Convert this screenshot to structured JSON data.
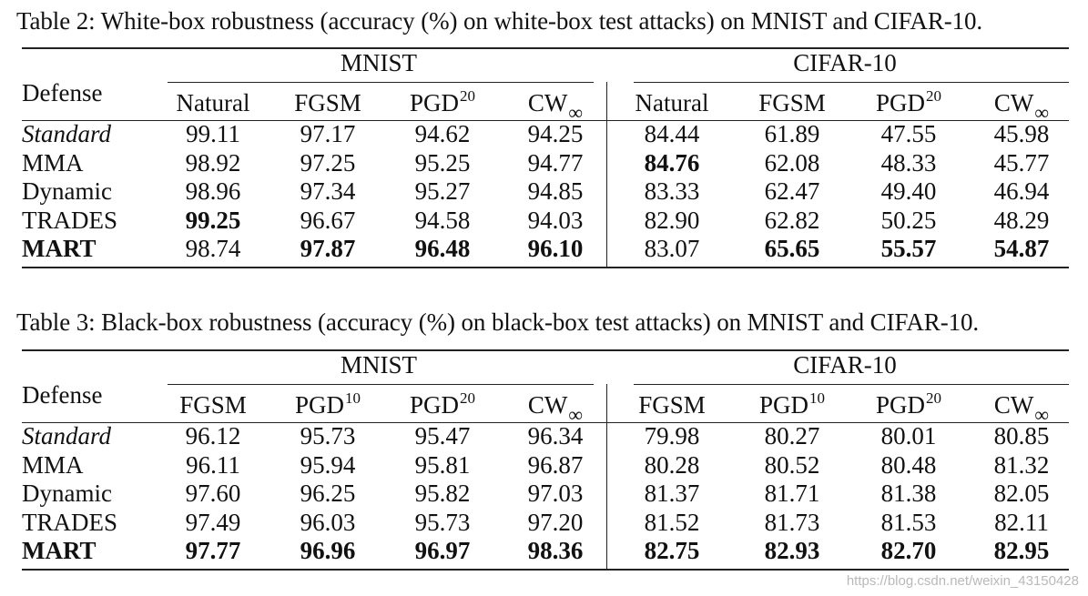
{
  "tables": [
    {
      "caption": "Table 2: White-box robustness (accuracy (%) on white-box test attacks) on MNIST and CIFAR-10.",
      "row_header": "Defense",
      "groups": [
        "MNIST",
        "CIFAR-10"
      ],
      "columns": [
        {
          "text": "Natural",
          "mod": "",
          "mtype": ""
        },
        {
          "text": "FGSM",
          "mod": "",
          "mtype": ""
        },
        {
          "text": "PGD",
          "mod": "20",
          "mtype": "sup"
        },
        {
          "text": "CW",
          "mod": "∞",
          "mtype": "sub"
        },
        {
          "text": "Natural",
          "mod": "",
          "mtype": ""
        },
        {
          "text": "FGSM",
          "mod": "",
          "mtype": ""
        },
        {
          "text": "PGD",
          "mod": "20",
          "mtype": "sup"
        },
        {
          "text": "CW",
          "mod": "∞",
          "mtype": "sub"
        }
      ],
      "rows": [
        {
          "defense": "Standard",
          "italic": true,
          "bold": false,
          "values": [
            "99.11",
            "97.17",
            "94.62",
            "94.25",
            "84.44",
            "61.89",
            "47.55",
            "45.98"
          ],
          "bold_values": [
            false,
            false,
            false,
            false,
            false,
            false,
            false,
            false
          ]
        },
        {
          "defense": "MMA",
          "italic": false,
          "bold": false,
          "values": [
            "98.92",
            "97.25",
            "95.25",
            "94.77",
            "84.76",
            "62.08",
            "48.33",
            "45.77"
          ],
          "bold_values": [
            false,
            false,
            false,
            false,
            true,
            false,
            false,
            false
          ]
        },
        {
          "defense": "Dynamic",
          "italic": false,
          "bold": false,
          "values": [
            "98.96",
            "97.34",
            "95.27",
            "94.85",
            "83.33",
            "62.47",
            "49.40",
            "46.94"
          ],
          "bold_values": [
            false,
            false,
            false,
            false,
            false,
            false,
            false,
            false
          ]
        },
        {
          "defense": "TRADES",
          "italic": false,
          "bold": false,
          "values": [
            "99.25",
            "96.67",
            "94.58",
            "94.03",
            "82.90",
            "62.82",
            "50.25",
            "48.29"
          ],
          "bold_values": [
            true,
            false,
            false,
            false,
            false,
            false,
            false,
            false
          ]
        },
        {
          "defense": "MART",
          "italic": false,
          "bold": true,
          "values": [
            "98.74",
            "97.87",
            "96.48",
            "96.10",
            "83.07",
            "65.65",
            "55.57",
            "54.87"
          ],
          "bold_values": [
            false,
            true,
            true,
            true,
            false,
            true,
            true,
            true
          ]
        }
      ]
    },
    {
      "caption": "Table 3: Black-box robustness (accuracy (%) on black-box test attacks) on MNIST and CIFAR-10.",
      "row_header": "Defense",
      "groups": [
        "MNIST",
        "CIFAR-10"
      ],
      "columns": [
        {
          "text": "FGSM",
          "mod": "",
          "mtype": ""
        },
        {
          "text": "PGD",
          "mod": "10",
          "mtype": "sup"
        },
        {
          "text": "PGD",
          "mod": "20",
          "mtype": "sup"
        },
        {
          "text": "CW",
          "mod": "∞",
          "mtype": "sub"
        },
        {
          "text": "FGSM",
          "mod": "",
          "mtype": ""
        },
        {
          "text": "PGD",
          "mod": "10",
          "mtype": "sup"
        },
        {
          "text": "PGD",
          "mod": "20",
          "mtype": "sup"
        },
        {
          "text": "CW",
          "mod": "∞",
          "mtype": "sub"
        }
      ],
      "rows": [
        {
          "defense": "Standard",
          "italic": true,
          "bold": false,
          "values": [
            "96.12",
            "95.73",
            "95.47",
            "96.34",
            "79.98",
            "80.27",
            "80.01",
            "80.85"
          ],
          "bold_values": [
            false,
            false,
            false,
            false,
            false,
            false,
            false,
            false
          ]
        },
        {
          "defense": "MMA",
          "italic": false,
          "bold": false,
          "values": [
            "96.11",
            "95.94",
            "95.81",
            "96.87",
            "80.28",
            "80.52",
            "80.48",
            "81.32"
          ],
          "bold_values": [
            false,
            false,
            false,
            false,
            false,
            false,
            false,
            false
          ]
        },
        {
          "defense": "Dynamic",
          "italic": false,
          "bold": false,
          "values": [
            "97.60",
            "96.25",
            "95.82",
            "97.03",
            "81.37",
            "81.71",
            "81.38",
            "82.05"
          ],
          "bold_values": [
            false,
            false,
            false,
            false,
            false,
            false,
            false,
            false
          ]
        },
        {
          "defense": "TRADES",
          "italic": false,
          "bold": false,
          "values": [
            "97.49",
            "96.03",
            "95.73",
            "97.20",
            "81.52",
            "81.73",
            "81.53",
            "82.11"
          ],
          "bold_values": [
            false,
            false,
            false,
            false,
            false,
            false,
            false,
            false
          ]
        },
        {
          "defense": "MART",
          "italic": false,
          "bold": true,
          "values": [
            "97.77",
            "96.96",
            "96.97",
            "98.36",
            "82.75",
            "82.93",
            "82.70",
            "82.95"
          ],
          "bold_values": [
            true,
            true,
            true,
            true,
            true,
            true,
            true,
            true
          ]
        }
      ]
    }
  ],
  "watermark": "https://blog.csdn.net/weixin_43150428"
}
